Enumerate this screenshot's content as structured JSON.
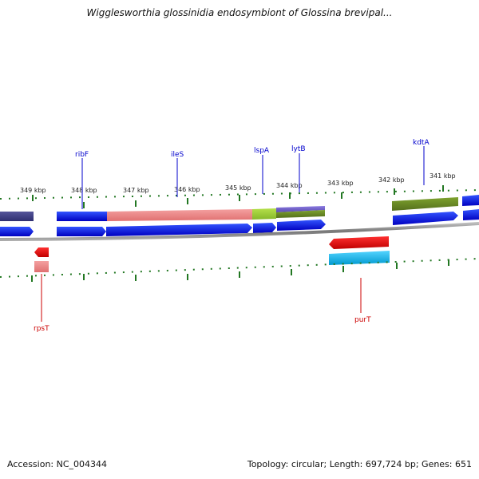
{
  "title": "Wigglesworthia glossinidia endosymbiont of Glossina brevipal...",
  "footer": {
    "accession": "Accession: NC_004344",
    "stats": "Topology: circular; Length: 697,724 bp; Genes: 651"
  },
  "colors": {
    "forward_strand": "#0000ee",
    "forward_dark": "#3a3a8a",
    "rna_pink": "#f08a8a",
    "green": "#6b8e23",
    "lime": "#99cc33",
    "violet": "#6a5acd",
    "reverse_red": "#ee0000",
    "cyan": "#00bbee",
    "tick_green": "#227722",
    "backbone": "#888888",
    "label_blue": "#0000cc",
    "label_red": "#cc0000"
  },
  "ticks": [
    "349 kbp",
    "348 kbp",
    "347 kbp",
    "346 kbp",
    "345 kbp",
    "344 kbp",
    "343 kbp",
    "342 kbp",
    "341 kbp"
  ],
  "gene_labels": {
    "top": [
      "ribF",
      "ileS",
      "lspA",
      "lytB",
      "kdtA"
    ],
    "bottom": [
      "rpsT",
      "purT"
    ]
  }
}
